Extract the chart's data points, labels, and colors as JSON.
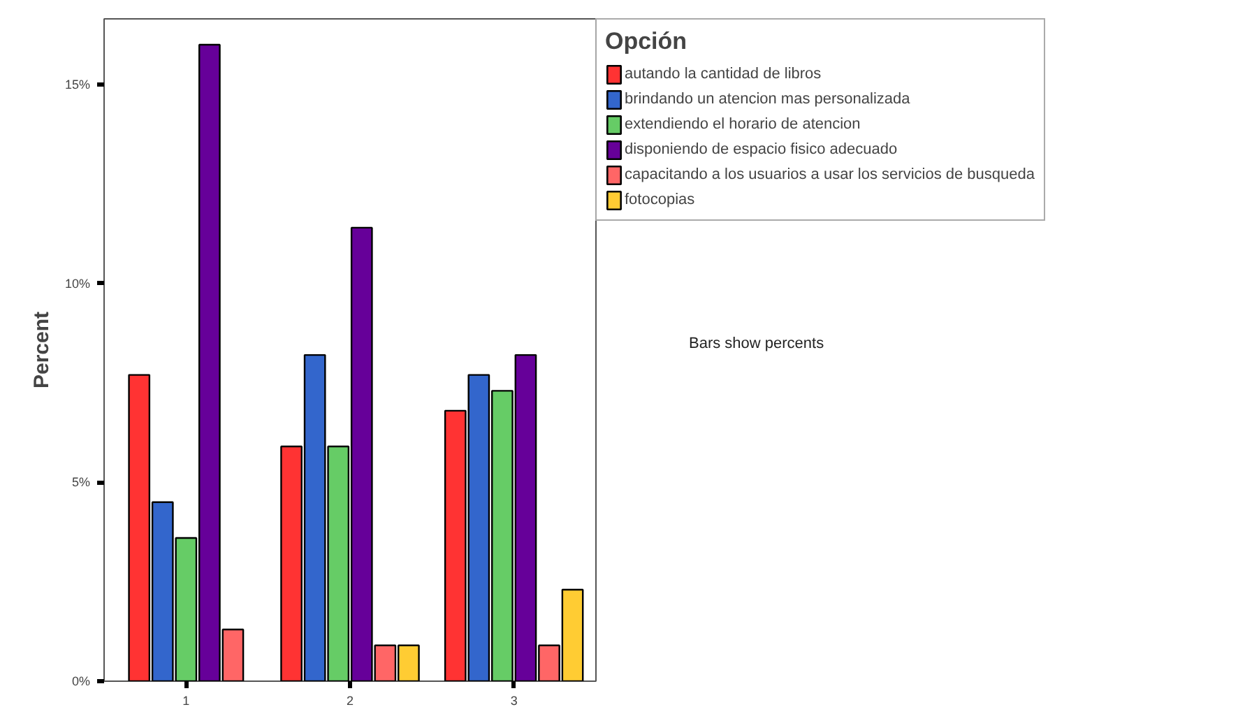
{
  "chart_data": {
    "type": "bar",
    "ylabel": "Percent",
    "legend_title": "Opción",
    "categories": [
      "1",
      "2",
      "3"
    ],
    "series": [
      {
        "name": "autando la cantidad de libros",
        "color": "#ff3333",
        "values": [
          7.7,
          5.9,
          6.8
        ]
      },
      {
        "name": "brindando un atencion mas personalizada",
        "color": "#3366cc",
        "values": [
          4.5,
          8.2,
          7.7
        ]
      },
      {
        "name": "extendiendo el horario de atencion",
        "color": "#66cc66",
        "values": [
          3.6,
          5.9,
          7.3
        ]
      },
      {
        "name": "disponiendo de espacio fisico adecuado",
        "color": "#660099",
        "values": [
          16.0,
          11.4,
          8.2
        ]
      },
      {
        "name": "capacitando a los usuarios a usar los servicios de busqueda",
        "color": "#ff6666",
        "values": [
          1.3,
          0.9,
          0.9
        ]
      },
      {
        "name": "fotocopias",
        "color": "#ffcc33",
        "values": [
          null,
          0.9,
          2.3
        ]
      }
    ],
    "ylim": [
      0,
      16.65
    ],
    "yticks": [
      {
        "value": 0,
        "label": "0%"
      },
      {
        "value": 5,
        "label": "5%"
      },
      {
        "value": 10,
        "label": "10%"
      },
      {
        "value": 15,
        "label": "15%"
      }
    ],
    "grid": false,
    "legend": "right",
    "annotations": [
      "Bars show percents"
    ]
  }
}
